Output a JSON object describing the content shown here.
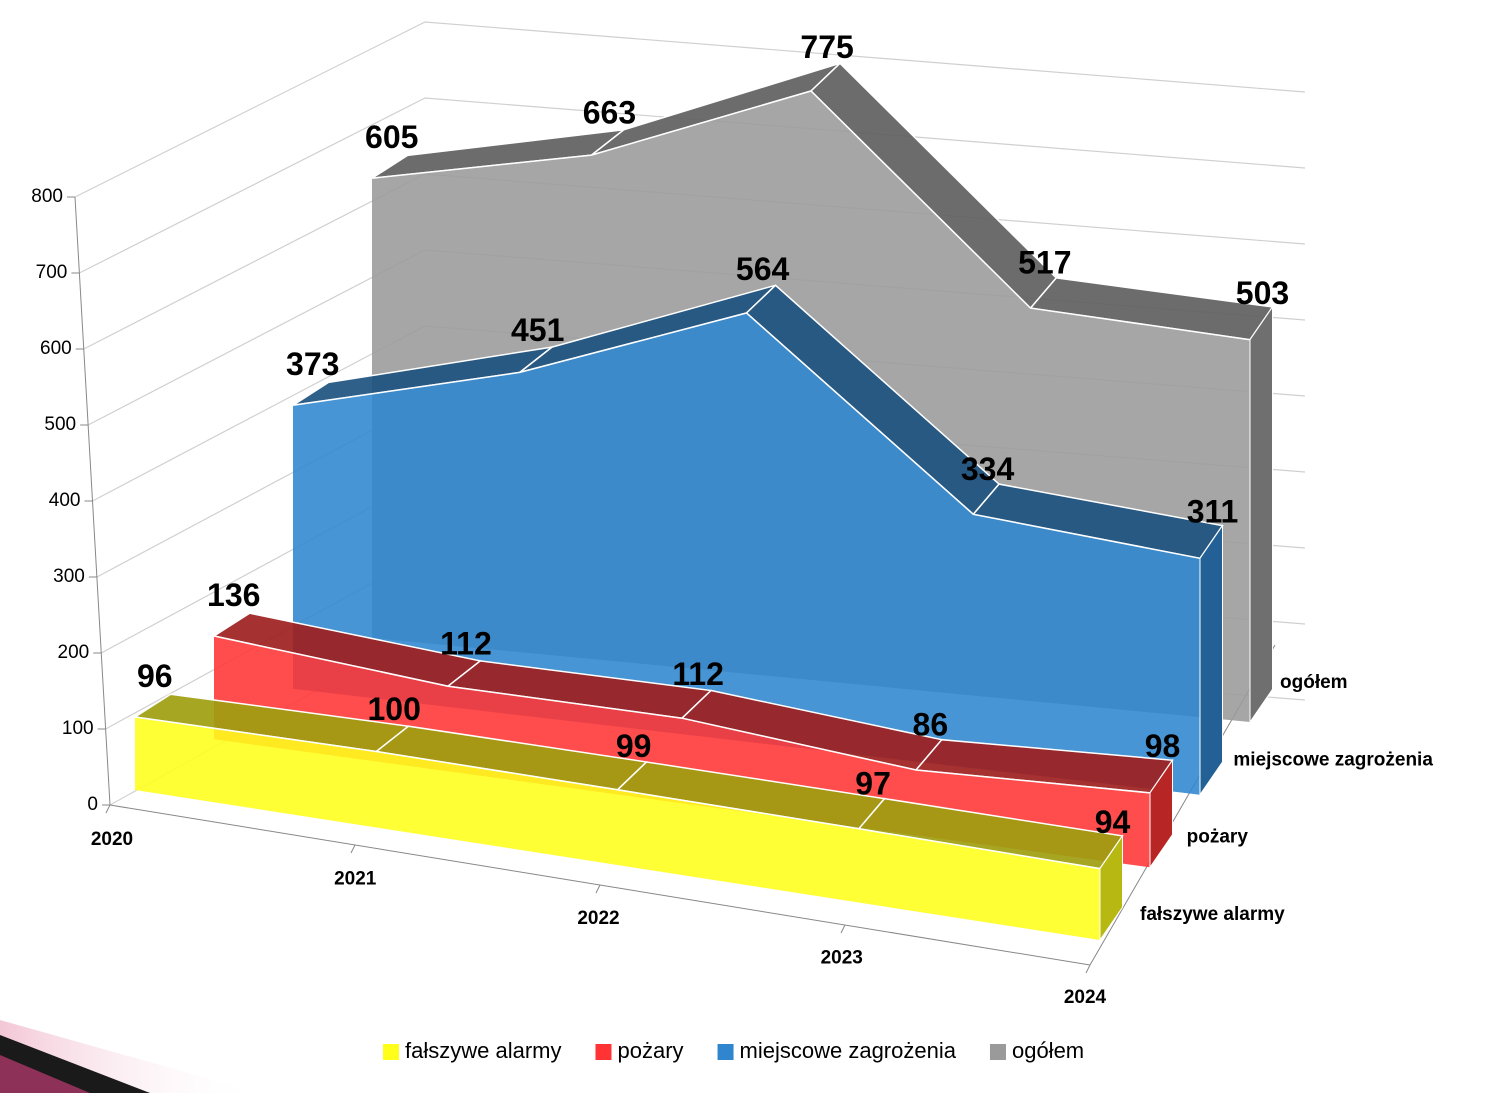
{
  "chart_data": {
    "type": "area",
    "categories": [
      "2020",
      "2021",
      "2022",
      "2023",
      "2024"
    ],
    "series": [
      {
        "name": "fałszywe alarmy",
        "color": "#ffff1a",
        "values": [
          96,
          100,
          99,
          97,
          94
        ]
      },
      {
        "name": "pożary",
        "color": "#ff3333",
        "values": [
          136,
          112,
          112,
          86,
          98
        ]
      },
      {
        "name": "miejscowe zagrożenia",
        "color": "#2f86cf",
        "values": [
          373,
          451,
          564,
          334,
          311
        ]
      },
      {
        "name": "ogółem",
        "color": "#9a9a9a",
        "values": [
          605,
          663,
          775,
          517,
          503
        ]
      }
    ],
    "ylim": [
      0,
      800
    ],
    "yticks": [
      0,
      100,
      200,
      300,
      400,
      500,
      600,
      700,
      800
    ],
    "grid": true,
    "legend": "bottom"
  }
}
